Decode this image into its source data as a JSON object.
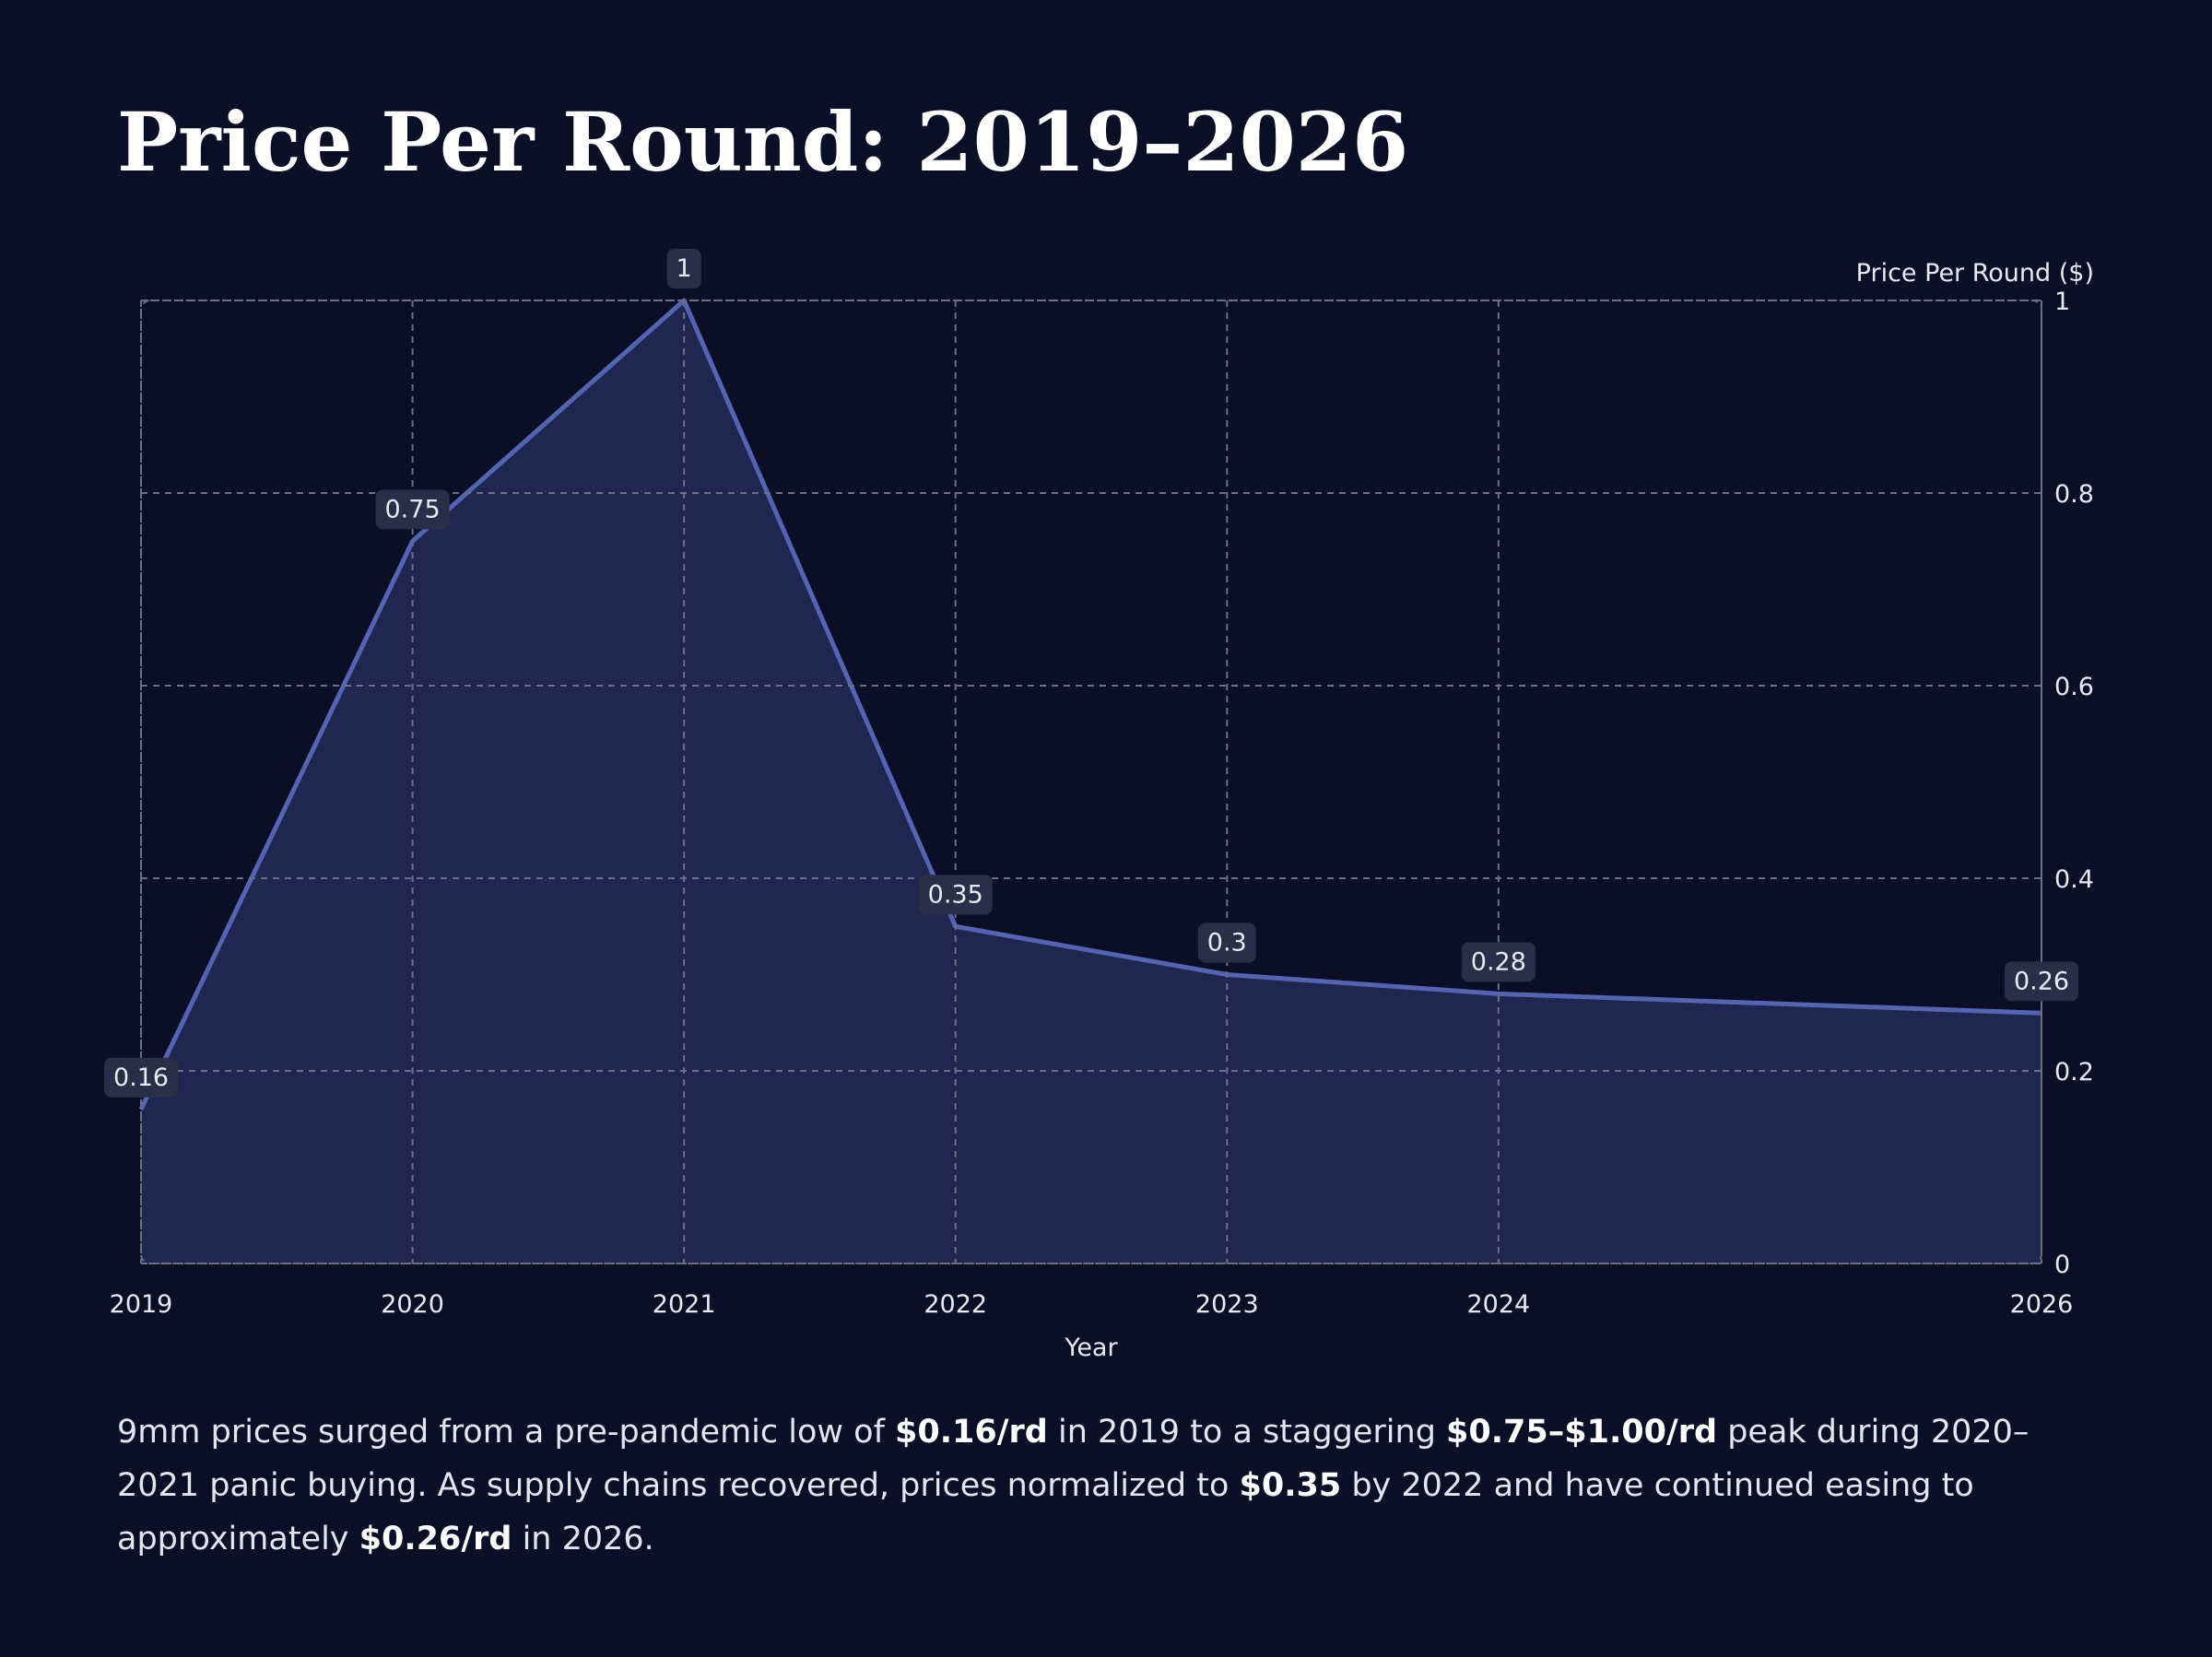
{
  "chart_data": {
    "type": "area",
    "title": "Price Per Round: 2019–2026",
    "x": [
      2019,
      2020,
      2021,
      2022,
      2023,
      2024,
      2026
    ],
    "values": [
      0.16,
      0.75,
      1,
      0.35,
      0.3,
      0.28,
      0.26
    ],
    "xlim": [
      2019,
      2026
    ],
    "xticks": [
      2019,
      2020,
      2021,
      2022,
      2023,
      2024,
      2026
    ],
    "ylim": [
      0,
      1
    ],
    "yticks": [
      0,
      0.2,
      0.4,
      0.6,
      0.8,
      1
    ],
    "x_label": "Year",
    "y_label": "Price Per Round ($)",
    "y_axis_side": "right",
    "grid": true,
    "color": "#5563b3",
    "fill_color": "#1f2750",
    "caption": [
      {
        "text": "9mm prices surged from a pre-pandemic low of ",
        "bold": false
      },
      {
        "text": "$0.16/rd",
        "bold": true
      },
      {
        "text": " in 2019 to a staggering ",
        "bold": false
      },
      {
        "text": "$0.75–$1.00/rd",
        "bold": true
      },
      {
        "text": " peak during 2020–2021 panic buying. As supply chains recovered, prices normalized to ",
        "bold": false
      },
      {
        "text": "$0.35",
        "bold": true
      },
      {
        "text": " by 2022 and have continued easing to approximately ",
        "bold": false
      },
      {
        "text": "$0.26/rd",
        "bold": true
      },
      {
        "text": " in 2026.",
        "bold": false
      }
    ]
  }
}
